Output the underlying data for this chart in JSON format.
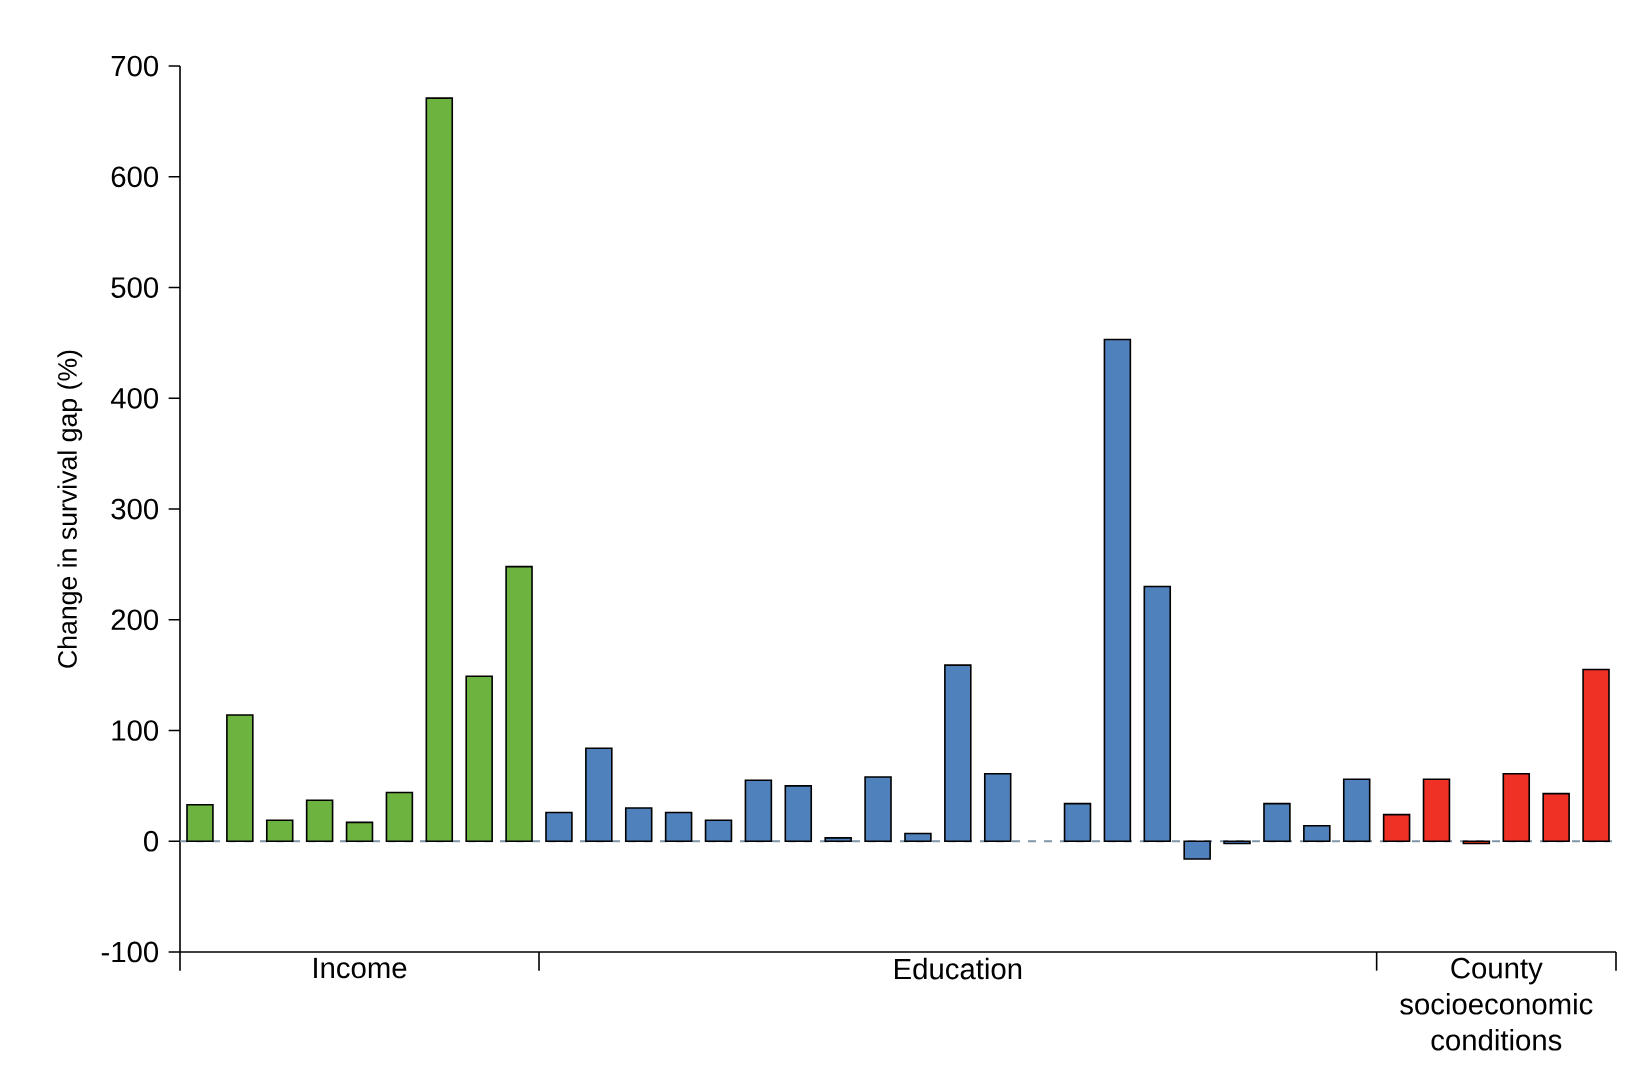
{
  "chart_data": {
    "type": "bar",
    "ylabel": "Change in survival gap (%)",
    "categories": [
      null,
      null,
      null,
      null,
      null,
      null,
      null,
      null,
      null,
      null,
      null,
      null,
      null,
      null,
      null,
      null,
      null,
      null,
      null,
      null,
      null,
      null,
      null,
      null,
      null,
      null,
      null,
      null,
      null,
      null,
      null,
      null,
      null,
      null,
      null,
      null
    ],
    "values": [
      33,
      114,
      19,
      37,
      17,
      44,
      671,
      149,
      248,
      26,
      84,
      30,
      26,
      19,
      55,
      50,
      3,
      58,
      7,
      159,
      61,
      null,
      34,
      453,
      230,
      -16,
      -2,
      34,
      14,
      56,
      24,
      56,
      -2,
      61,
      43,
      155
    ],
    "colors": [
      "#6db33f",
      "#6db33f",
      "#6db33f",
      "#6db33f",
      "#6db33f",
      "#6db33f",
      "#6db33f",
      "#6db33f",
      "#6db33f",
      "#4f81bd",
      "#4f81bd",
      "#4f81bd",
      "#4f81bd",
      "#4f81bd",
      "#4f81bd",
      "#4f81bd",
      "#4f81bd",
      "#4f81bd",
      "#4f81bd",
      "#4f81bd",
      "#4f81bd",
      "#4f81bd",
      "#4f81bd",
      "#4f81bd",
      "#4f81bd",
      "#4f81bd",
      "#4f81bd",
      "#4f81bd",
      "#4f81bd",
      "#4f81bd",
      "#ee3124",
      "#ee3124",
      "#ee3124",
      "#ee3124",
      "#ee3124",
      "#ee3124"
    ],
    "annotations": [
      "Income",
      "Education",
      "County socioeconomic conditions"
    ],
    "ylim": [
      -100,
      700
    ],
    "yticks": [
      -100,
      0,
      100,
      200,
      300,
      400,
      500,
      600,
      700
    ],
    "ref_lines": [
      {
        "axis": "y",
        "value": 0,
        "color": "#7f96a8",
        "line_style": "dashed"
      }
    ],
    "grid": false,
    "tick_labels": "y"
  }
}
